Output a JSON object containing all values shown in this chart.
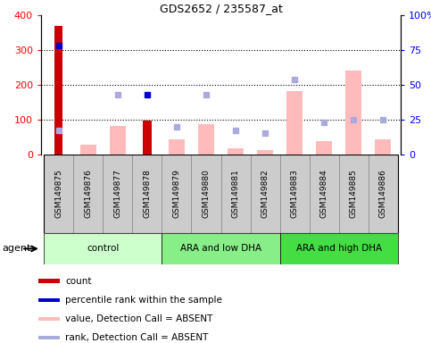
{
  "title": "GDS2652 / 235587_at",
  "samples": [
    "GSM149875",
    "GSM149876",
    "GSM149877",
    "GSM149878",
    "GSM149879",
    "GSM149880",
    "GSM149881",
    "GSM149882",
    "GSM149883",
    "GSM149884",
    "GSM149885",
    "GSM149886"
  ],
  "groups": [
    {
      "label": "control",
      "start": 0,
      "end": 3,
      "color": "#ccffcc"
    },
    {
      "label": "ARA and low DHA",
      "start": 4,
      "end": 7,
      "color": "#88ee88"
    },
    {
      "label": "ARA and high DHA",
      "start": 8,
      "end": 11,
      "color": "#44dd44"
    }
  ],
  "count_values": [
    370,
    0,
    0,
    97,
    0,
    0,
    0,
    0,
    0,
    0,
    0,
    0
  ],
  "count_color": "#cc0000",
  "pink_bar_values": [
    0,
    28,
    82,
    0,
    42,
    88,
    18,
    13,
    182,
    37,
    242,
    42
  ],
  "pink_bar_color": "#ffbbbb",
  "absent_rank_values": [
    68,
    null,
    172,
    null,
    80,
    172,
    68,
    60,
    216,
    92,
    100,
    100
  ],
  "absent_rank_color": "#aaaadd",
  "percentile_rank_values": [
    312,
    null,
    null,
    172,
    null,
    null,
    null,
    null,
    null,
    null,
    null,
    null
  ],
  "percentile_rank_color": "#0000cc",
  "ylim_left": [
    0,
    400
  ],
  "ylim_right": [
    0,
    100
  ],
  "yticks_left": [
    0,
    100,
    200,
    300,
    400
  ],
  "yticks_right": [
    0,
    25,
    50,
    75,
    100
  ],
  "yticklabels_right": [
    "0",
    "25",
    "50",
    "75",
    "100%"
  ],
  "grid_values": [
    100,
    200,
    300
  ],
  "legend_items": [
    {
      "color": "#cc0000",
      "label": "count"
    },
    {
      "color": "#0000cc",
      "label": "percentile rank within the sample"
    },
    {
      "color": "#ffbbbb",
      "label": "value, Detection Call = ABSENT"
    },
    {
      "color": "#aaaadd",
      "label": "rank, Detection Call = ABSENT"
    }
  ]
}
